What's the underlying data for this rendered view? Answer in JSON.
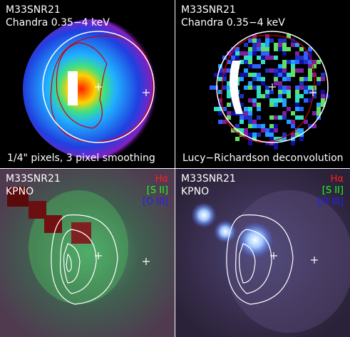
{
  "panels": [
    {
      "title": "M33SNR21",
      "subtitle": "Chandra 0.35−4 keV",
      "caption": "1/4\" pixels, 3 pixel smoothing"
    },
    {
      "title": "M33SNR21",
      "subtitle": "Chandra 0.35−4 keV",
      "caption": "Lucy−Richardson deconvolution"
    },
    {
      "title": "M33SNR21",
      "subtitle": "KPNO",
      "legend": [
        "Hα",
        "[S II]",
        "[O III]"
      ]
    },
    {
      "title": "M33SNR21",
      "subtitle": "KPNO",
      "legend": [
        "Hα",
        "[S II]",
        "[O III]"
      ]
    }
  ]
}
